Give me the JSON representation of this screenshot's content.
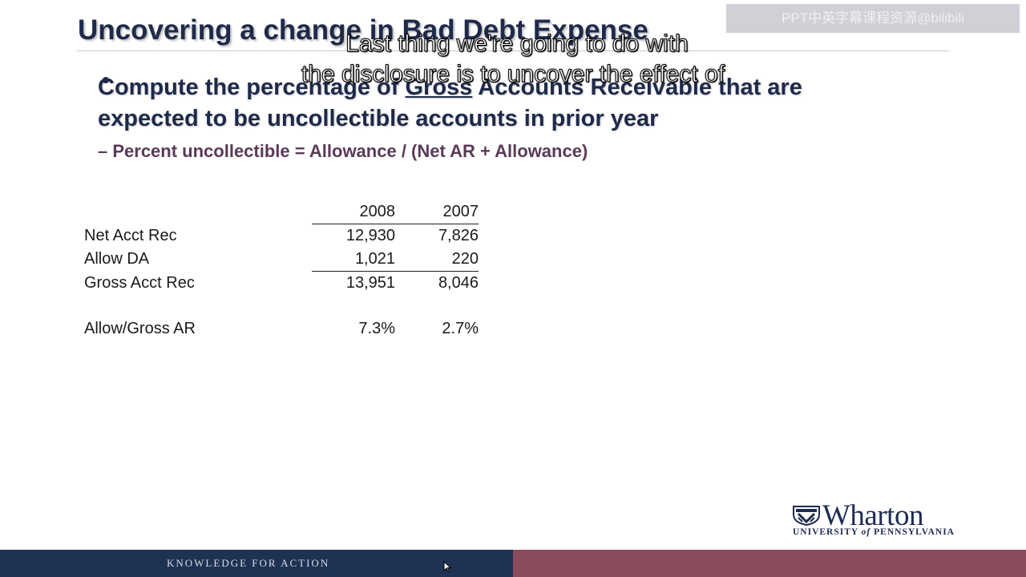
{
  "slide": {
    "title": "Uncovering a change in Bad Debt Expense",
    "bullet": {
      "part1": "Compute the percentage of ",
      "underlined": "Gross",
      "part2": " Accounts Receivable that are expected to be uncollectible accounts in prior year"
    },
    "sub_bullet": "– Percent uncollectible = Allowance / (Net AR + Allowance)"
  },
  "watermark": "PPT中英字幕课程资源@bilibili",
  "subtitle": {
    "line1": "Last thing we're going to do with",
    "line2": "the disclosure is to uncover the effect of"
  },
  "table": {
    "columns": [
      "2008",
      "2007"
    ],
    "rows": [
      {
        "label": "Net Acct Rec",
        "v2008": "12,930",
        "v2007": "7,826"
      },
      {
        "label": "Allow DA",
        "v2008": "1,021",
        "v2007": "220"
      },
      {
        "label": "Gross Acct Rec",
        "v2008": "13,951",
        "v2007": "8,046"
      },
      {
        "label": "Allow/Gross AR",
        "v2008": "7.3%",
        "v2007": "2.7%"
      }
    ]
  },
  "logo": {
    "name": "Wharton",
    "university_prefix": "UNIVERSITY ",
    "university_of": "of",
    "university_suffix": " PENNSYLVANIA"
  },
  "footer": {
    "tagline": "KNOWLEDGE FOR ACTION"
  },
  "colors": {
    "title": "#1f2a4a",
    "sub_bullet": "#5a3a58",
    "footer_left": "#1f3253",
    "footer_right": "#8b4c5c"
  },
  "icons": [
    "bullet-dot-icon",
    "wharton-shield-icon",
    "mouse-cursor-icon"
  ]
}
